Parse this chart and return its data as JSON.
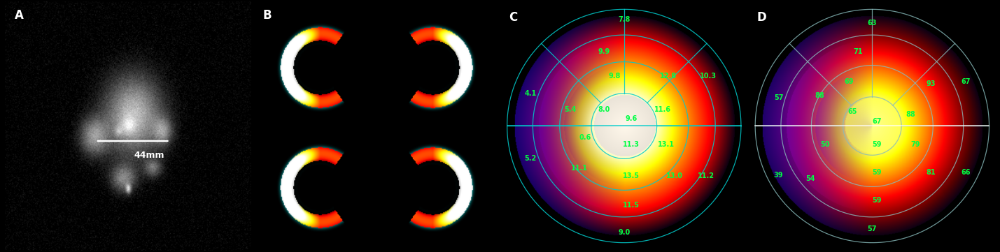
{
  "panel_labels": [
    "A",
    "B",
    "C",
    "D"
  ],
  "panel_label_color": "white",
  "panel_label_fontsize": 12,
  "bg_color": "black",
  "panel_A": {
    "label": "44mm",
    "label_color": "white"
  },
  "panel_C": {
    "values": {
      "top": "7.8",
      "upper_left_mid": "9.9",
      "upper_left_inner_mid": "9.8",
      "center_left": "8.0",
      "center": "9.6",
      "center_right": "11.6",
      "upper_right_inner": "12.8",
      "upper_right_outer": "10.3",
      "left_outer_upper": "4.1",
      "left_outer_lower": "5.2",
      "left_inner_lower": "5.4",
      "left_center_lower": "0.6",
      "lower_left_mid": "11.1",
      "lower_center": "11.3",
      "lower_right_mid": "13.1",
      "lower_right_inner": "13.0",
      "lower_center_bottom": "13.5",
      "lower_bottom_mid": "11.5",
      "lower_right_outer": "11.2",
      "bottom": "9.0"
    },
    "circle_color": "#00CCCC",
    "line_color": "#00CCCC",
    "text_color": "#00FF44"
  },
  "panel_D": {
    "values": {
      "top": "63",
      "upper_left_mid": "71",
      "upper_left_inner": "69",
      "upper_left_center": "65",
      "center": "67",
      "center_right": "88",
      "upper_right_inner": "93",
      "upper_right_outer_upper": "67",
      "left_outer": "57",
      "left_inner": "88",
      "lower_left_mid": "50",
      "lower_left_inner": "54",
      "lower_center": "59",
      "lower_right_mid": "79",
      "lower_right_inner": "81",
      "lower_right_outer": "66",
      "lower_bottom": "59",
      "bottom": "57",
      "lower_outer_left": "39",
      "lower_bottom_center": "59"
    },
    "circle_color": "#88BBBB",
    "line_color": "#88BBBB",
    "text_color": "#00FF44"
  }
}
